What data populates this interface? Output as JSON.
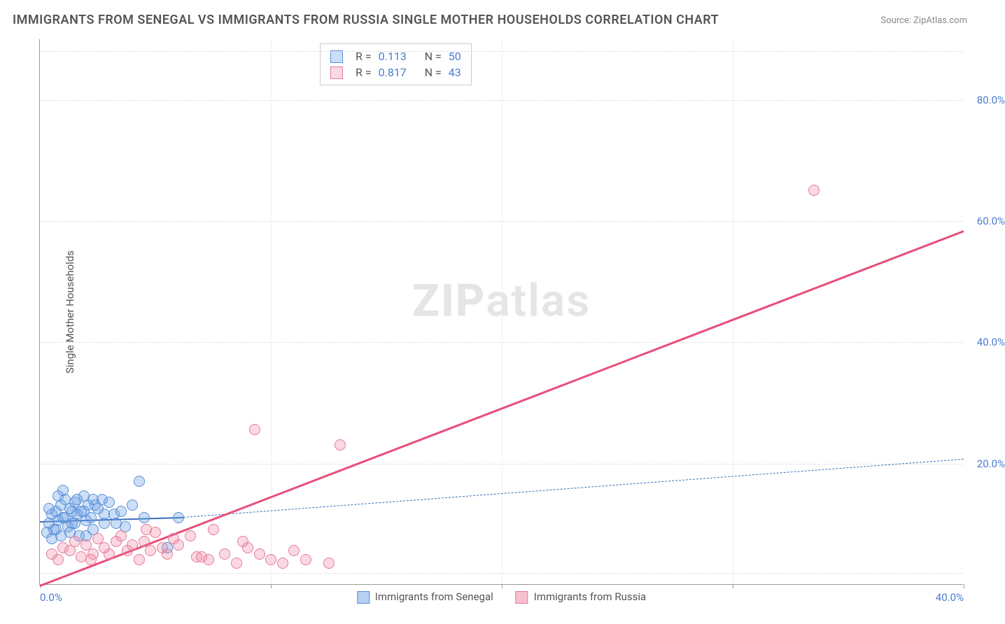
{
  "title": "IMMIGRANTS FROM SENEGAL VS IMMIGRANTS FROM RUSSIA SINGLE MOTHER HOUSEHOLDS CORRELATION CHART",
  "source": "Source: ZipAtlas.com",
  "ylabel": "Single Mother Households",
  "watermark_zip": "ZIP",
  "watermark_atlas": "atlas",
  "chart": {
    "type": "scatter",
    "background_color": "#ffffff",
    "grid_color": "#dddddd",
    "axis_color": "#999999",
    "xlim": [
      0,
      40
    ],
    "ylim": [
      0,
      90
    ],
    "xticks": [
      0,
      10,
      20,
      30,
      40
    ],
    "xtick_labels": [
      "0.0%",
      "",
      "",
      "",
      "40.0%"
    ],
    "yticks": [
      20,
      40,
      60,
      80
    ],
    "ytick_labels": [
      "20.0%",
      "40.0%",
      "60.0%",
      "80.0%"
    ],
    "ygrid": [
      2,
      20,
      40,
      60,
      80,
      88
    ],
    "label_color": "#4a7bd0",
    "label_fontsize": 15,
    "marker_radius": 8,
    "marker_border_width": 1.5,
    "marker_fill_opacity": 0.3
  },
  "series": [
    {
      "key": "senegal",
      "label": "Immigrants from Senegal",
      "color_fill": "rgba(110,160,230,0.35)",
      "color_border": "#5a8fd8",
      "R": "0.113",
      "N": "50",
      "regression": {
        "x1": 0,
        "y1": 10.5,
        "x2": 6.2,
        "y2": 11.2,
        "dash_x1": 6.2,
        "dash_y1": 11.2,
        "dash_x2": 40,
        "dash_y2": 20.8,
        "width": 2.5,
        "color": "#3a6fb8"
      },
      "points": [
        [
          0.3,
          8.5
        ],
        [
          0.4,
          10.0
        ],
        [
          0.5,
          11.5
        ],
        [
          0.6,
          9.0
        ],
        [
          0.7,
          12.0
        ],
        [
          0.8,
          10.5
        ],
        [
          0.9,
          13.0
        ],
        [
          1.0,
          11.0
        ],
        [
          1.1,
          14.0
        ],
        [
          1.2,
          9.5
        ],
        [
          1.3,
          12.5
        ],
        [
          1.4,
          10.0
        ],
        [
          1.5,
          13.5
        ],
        [
          1.6,
          11.5
        ],
        [
          1.7,
          8.0
        ],
        [
          1.8,
          12.0
        ],
        [
          1.9,
          14.5
        ],
        [
          2.0,
          10.5
        ],
        [
          2.1,
          13.0
        ],
        [
          2.2,
          11.0
        ],
        [
          2.3,
          9.0
        ],
        [
          2.5,
          12.5
        ],
        [
          2.7,
          14.0
        ],
        [
          2.8,
          10.0
        ],
        [
          3.0,
          13.5
        ],
        [
          3.2,
          11.5
        ],
        [
          3.5,
          12.0
        ],
        [
          3.7,
          9.5
        ],
        [
          4.0,
          13.0
        ],
        [
          4.3,
          17.0
        ],
        [
          4.5,
          11.0
        ],
        [
          1.0,
          15.5
        ],
        [
          1.3,
          8.5
        ],
        [
          1.6,
          14.0
        ],
        [
          0.5,
          7.5
        ],
        [
          0.8,
          14.5
        ],
        [
          2.0,
          8.0
        ],
        [
          2.4,
          13.0
        ],
        [
          0.4,
          12.5
        ],
        [
          0.7,
          9.0
        ],
        [
          1.1,
          11.0
        ],
        [
          1.5,
          10.0
        ],
        [
          1.9,
          12.0
        ],
        [
          2.3,
          14.0
        ],
        [
          2.8,
          11.5
        ],
        [
          3.3,
          10.0
        ],
        [
          0.9,
          8.0
        ],
        [
          1.4,
          12.0
        ],
        [
          5.5,
          6.0
        ],
        [
          6.0,
          11.0
        ]
      ]
    },
    {
      "key": "russia",
      "label": "Immigrants from Russia",
      "color_fill": "rgba(240,130,160,0.3)",
      "color_border": "#e67a9a",
      "R": "0.817",
      "N": "43",
      "regression": {
        "x1": 0,
        "y1": 0,
        "x2": 40,
        "y2": 58.5,
        "width": 3,
        "color": "#e84d7a"
      },
      "points": [
        [
          0.5,
          5.0
        ],
        [
          0.8,
          4.0
        ],
        [
          1.0,
          6.0
        ],
        [
          1.3,
          5.5
        ],
        [
          1.5,
          7.0
        ],
        [
          1.8,
          4.5
        ],
        [
          2.0,
          6.5
        ],
        [
          2.3,
          5.0
        ],
        [
          2.5,
          7.5
        ],
        [
          2.8,
          6.0
        ],
        [
          3.0,
          5.0
        ],
        [
          3.3,
          7.0
        ],
        [
          3.5,
          8.0
        ],
        [
          3.8,
          5.5
        ],
        [
          4.0,
          6.5
        ],
        [
          4.3,
          4.0
        ],
        [
          4.5,
          7.0
        ],
        [
          4.8,
          5.5
        ],
        [
          5.0,
          8.5
        ],
        [
          5.3,
          6.0
        ],
        [
          5.5,
          5.0
        ],
        [
          5.8,
          7.5
        ],
        [
          6.0,
          6.5
        ],
        [
          6.5,
          8.0
        ],
        [
          7.0,
          4.5
        ],
        [
          7.3,
          4.0
        ],
        [
          7.5,
          9.0
        ],
        [
          8.0,
          5.0
        ],
        [
          8.5,
          3.5
        ],
        [
          9.0,
          6.0
        ],
        [
          9.3,
          25.5
        ],
        [
          9.5,
          5.0
        ],
        [
          10.0,
          4.0
        ],
        [
          10.5,
          3.5
        ],
        [
          11.0,
          5.5
        ],
        [
          11.5,
          4.0
        ],
        [
          12.5,
          3.5
        ],
        [
          13.0,
          23.0
        ],
        [
          8.8,
          7.0
        ],
        [
          6.8,
          4.5
        ],
        [
          4.6,
          9.0
        ],
        [
          2.2,
          4.0
        ],
        [
          33.5,
          65.0
        ]
      ]
    }
  ],
  "xlegend": [
    {
      "swatch_fill": "rgba(110,160,230,0.5)",
      "swatch_border": "#5a8fd8",
      "label": "Immigrants from Senegal"
    },
    {
      "swatch_fill": "rgba(240,130,160,0.5)",
      "swatch_border": "#e67a9a",
      "label": "Immigrants from Russia"
    }
  ],
  "stats_labels": {
    "R": "R =",
    "N": "N ="
  }
}
